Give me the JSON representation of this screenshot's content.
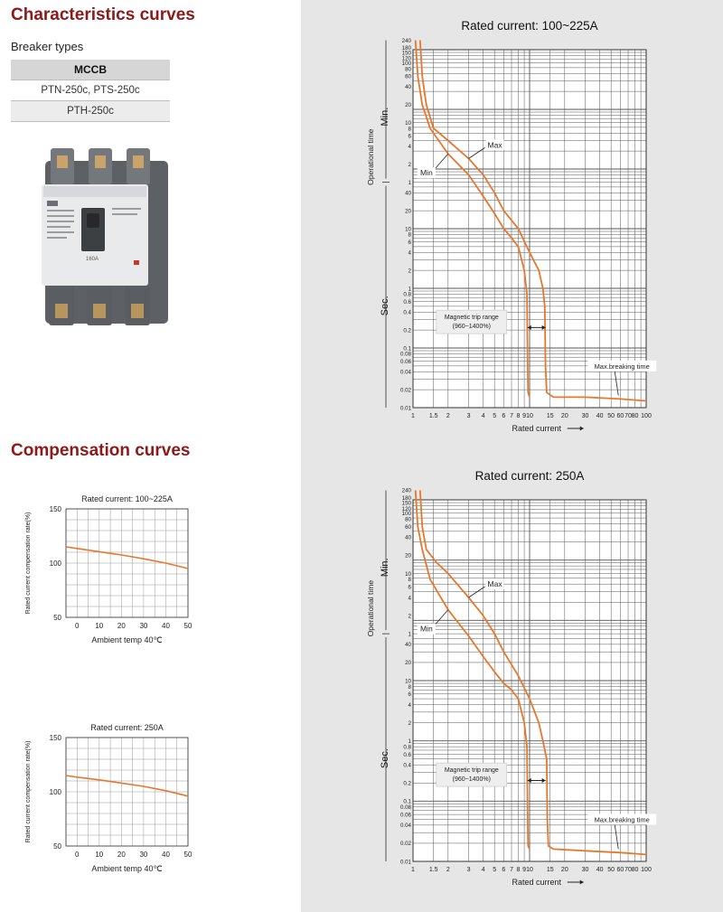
{
  "headings": {
    "characteristics": "Characteristics curves",
    "compensation": "Compensation curves"
  },
  "breaker_types": {
    "label": "Breaker types",
    "header": "MCCB",
    "rows": [
      "PTN-250c, PTS-250c",
      "PTH-250c"
    ]
  },
  "product_image": {
    "nameplate_rating": "160A"
  },
  "colors": {
    "curve": "#e8772e",
    "heading": "#8b1a1a",
    "panel": "#e6e6e6",
    "chart_bg": "#ffffff",
    "grid": "#555555"
  },
  "chart_data": [
    {
      "type": "line",
      "title": "Rated current: 100~225A",
      "xlabel": "Rated current",
      "ylabel": "Operational time",
      "xscale": "log",
      "yscale": "log",
      "xlim": [
        1,
        100
      ],
      "x_ticks": [
        "1",
        "1.5",
        "2",
        "3",
        "4",
        "5",
        "6",
        "7",
        "8",
        "9",
        "10",
        "15",
        "20",
        "30",
        "40",
        "50",
        "60",
        "70",
        "80",
        "100"
      ],
      "x_tick_values": [
        1,
        1.5,
        2,
        3,
        4,
        5,
        6,
        7,
        8,
        9,
        10,
        15,
        20,
        30,
        40,
        50,
        60,
        70,
        80,
        100
      ],
      "y_ticks_min": [
        "240",
        "180",
        "150",
        "120",
        "100",
        "80",
        "60",
        "40",
        "20",
        "10",
        "8",
        "6",
        "4",
        "2",
        "1"
      ],
      "y_ticks_sec": [
        "40",
        "20",
        "10",
        "8",
        "6",
        "4",
        "2",
        "1",
        "0.8",
        "0.6",
        "0.4",
        "0.2",
        "0.1",
        "0.08",
        "0.06",
        "0.04",
        "0.02",
        "0.01"
      ],
      "y_unit_min": "Min.",
      "y_unit_sec": "Sec.",
      "series": [
        {
          "name": "Max",
          "points": [
            [
              1.15,
              14400
            ],
            [
              1.2,
              3600
            ],
            [
              1.3,
              1200
            ],
            [
              1.5,
              480
            ],
            [
              2,
              300
            ],
            [
              3,
              150
            ],
            [
              4,
              80
            ],
            [
              5,
              40
            ],
            [
              6,
              20
            ],
            [
              8,
              10
            ],
            [
              10,
              4
            ],
            [
              12,
              2
            ],
            [
              13,
              1
            ],
            [
              13.5,
              0.5
            ],
            [
              13.7,
              0.05
            ],
            [
              14,
              0.018
            ],
            [
              16,
              0.015
            ],
            [
              30,
              0.015
            ],
            [
              60,
              0.014
            ],
            [
              100,
              0.013
            ]
          ]
        },
        {
          "name": "Min",
          "points": [
            [
              1.05,
              14400
            ],
            [
              1.1,
              3600
            ],
            [
              1.2,
              1200
            ],
            [
              1.4,
              480
            ],
            [
              2,
              180
            ],
            [
              3,
              80
            ],
            [
              4,
              35
            ],
            [
              5,
              18
            ],
            [
              6,
              10
            ],
            [
              7,
              7
            ],
            [
              8,
              5
            ],
            [
              9,
              2
            ],
            [
              9.5,
              0.8
            ],
            [
              9.6,
              0.08
            ],
            [
              9.7,
              0.018
            ],
            [
              10,
              0.015
            ]
          ]
        }
      ],
      "annotations": [
        {
          "text": "Max"
        },
        {
          "text": "Min"
        },
        {
          "text_lines": [
            "Magnetic trip range",
            "(960~1400%)"
          ]
        },
        {
          "text": "Max.breaking time"
        }
      ]
    },
    {
      "type": "line",
      "title": "Rated current: 250A",
      "xlabel": "Rated current",
      "ylabel": "Operational time",
      "xscale": "log",
      "yscale": "log",
      "xlim": [
        1,
        100
      ],
      "x_ticks": [
        "1",
        "1.5",
        "2",
        "3",
        "4",
        "5",
        "6",
        "7",
        "8",
        "9",
        "10",
        "15",
        "20",
        "30",
        "40",
        "50",
        "60",
        "70",
        "80",
        "100"
      ],
      "x_tick_values": [
        1,
        1.5,
        2,
        3,
        4,
        5,
        6,
        7,
        8,
        9,
        10,
        15,
        20,
        30,
        40,
        50,
        60,
        70,
        80,
        100
      ],
      "y_ticks_min": [
        "240",
        "180",
        "150",
        "120",
        "100",
        "80",
        "60",
        "40",
        "20",
        "10",
        "8",
        "6",
        "4",
        "2",
        "1"
      ],
      "y_ticks_sec": [
        "40",
        "20",
        "10",
        "8",
        "6",
        "4",
        "2",
        "1",
        "0.8",
        "0.6",
        "0.4",
        "0.2",
        "0.1",
        "0.08",
        "0.06",
        "0.04",
        "0.02",
        "0.01"
      ],
      "y_unit_min": "Min.",
      "y_unit_sec": "Sec.",
      "series": [
        {
          "name": "Max",
          "points": [
            [
              1.15,
              14400
            ],
            [
              1.2,
              3600
            ],
            [
              1.3,
              1500
            ],
            [
              1.6,
              900
            ],
            [
              2,
              600
            ],
            [
              3,
              240
            ],
            [
              4,
              120
            ],
            [
              5,
              60
            ],
            [
              6,
              30
            ],
            [
              8,
              12
            ],
            [
              10,
              5
            ],
            [
              12,
              2
            ],
            [
              13,
              1
            ],
            [
              14,
              0.5
            ],
            [
              14.2,
              0.05
            ],
            [
              14.5,
              0.018
            ],
            [
              16,
              0.016
            ],
            [
              30,
              0.015
            ],
            [
              60,
              0.014
            ],
            [
              100,
              0.013
            ]
          ]
        },
        {
          "name": "Min",
          "points": [
            [
              1.05,
              14400
            ],
            [
              1.1,
              3600
            ],
            [
              1.2,
              1500
            ],
            [
              1.4,
              480
            ],
            [
              2,
              150
            ],
            [
              3,
              55
            ],
            [
              4,
              25
            ],
            [
              5,
              14
            ],
            [
              6,
              9
            ],
            [
              7,
              7
            ],
            [
              8,
              5
            ],
            [
              9,
              2
            ],
            [
              9.5,
              0.8
            ],
            [
              9.6,
              0.08
            ],
            [
              9.7,
              0.018
            ],
            [
              10,
              0.016
            ]
          ]
        }
      ],
      "annotations": [
        {
          "text": "Max"
        },
        {
          "text": "Min"
        },
        {
          "text_lines": [
            "Magnetic trip range",
            "(960~1400%)"
          ]
        },
        {
          "text": "Max.breaking time"
        }
      ]
    },
    {
      "type": "line",
      "title": "Rated current: 100~225A",
      "xlabel": "Ambient temp 40℃",
      "ylabel": "Rated current compensation rate(%)",
      "xlim": [
        -5,
        50
      ],
      "ylim": [
        50,
        150
      ],
      "x_ticks": [
        0,
        10,
        20,
        30,
        40,
        50
      ],
      "y_ticks": [
        50,
        100,
        150
      ],
      "series": [
        {
          "x": [
            -5,
            0,
            10,
            20,
            30,
            40,
            50
          ],
          "y": [
            115,
            113.5,
            110.5,
            107.5,
            104,
            100,
            95
          ]
        }
      ]
    },
    {
      "type": "line",
      "title": "Rated current: 250A",
      "xlabel": "Ambient temp 40℃",
      "ylabel": "Rated current compensation rate(%)",
      "xlim": [
        -5,
        50
      ],
      "ylim": [
        50,
        150
      ],
      "x_ticks": [
        0,
        10,
        20,
        30,
        40,
        50
      ],
      "y_ticks": [
        50,
        100,
        150
      ],
      "series": [
        {
          "x": [
            -5,
            0,
            10,
            20,
            30,
            40,
            50
          ],
          "y": [
            115,
            113.5,
            111,
            108,
            105,
            101,
            96
          ]
        }
      ]
    }
  ]
}
